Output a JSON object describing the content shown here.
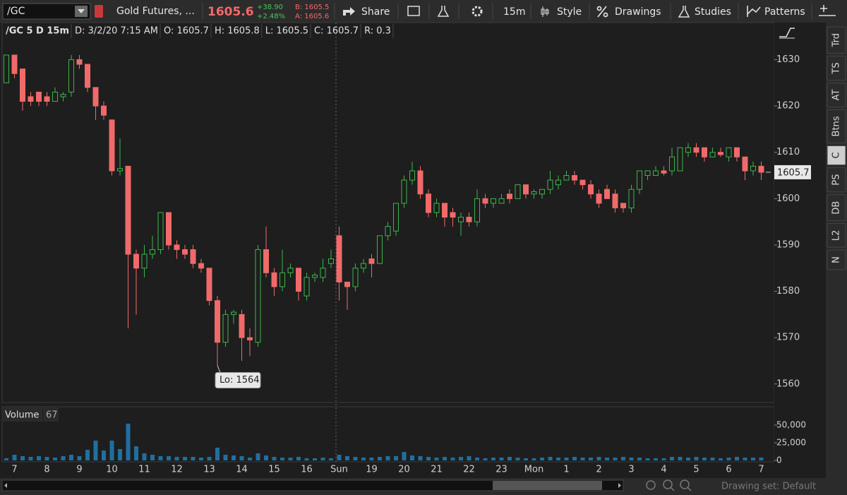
{
  "toolbar": {
    "symbol": "/GC",
    "description": "Gold Futures, ...",
    "last": "1605.6",
    "net_change": "+38.90",
    "percent_change": "+2.48%",
    "bid": "B: 1605.5",
    "ask": "A: 1605.6",
    "buttons": [
      "Share",
      "15m",
      "Style",
      "Drawings",
      "Studies",
      "Patterns"
    ]
  },
  "header": [
    "/GC 5 D 15m",
    "D: 3/2/20 7:15 AM",
    "O: 1605.7",
    "H: 1605.8",
    "L: 1605.5",
    "C: 1605.7",
    "R: 0.3"
  ],
  "chart_data": [
    {
      "type": "candlestick",
      "open": [
        1625,
        1631,
        1628,
        1622,
        1623,
        1622,
        1621,
        1622,
        1623,
        1630,
        1629,
        1624,
        1620,
        1617,
        1606,
        1607,
        1588,
        1585,
        1588,
        1589,
        1597,
        1590,
        1589,
        1589,
        1586,
        1585,
        1578,
        1569,
        1575,
        1575,
        1570,
        1569,
        1589,
        1584,
        1581,
        1584,
        1585,
        1579,
        1583,
        1583,
        1586,
        1592,
        1582,
        1581,
        1585,
        1587,
        1586,
        1592,
        1593,
        1599,
        1604,
        1606,
        1601,
        1597,
        1599,
        1597,
        1595,
        1596,
        1595,
        1600,
        1599,
        1599,
        1601,
        1600,
        1603,
        1601,
        1601,
        1602,
        1603,
        1604,
        1605,
        1604,
        1603,
        1601,
        1602,
        1601,
        1599,
        1598,
        1602,
        1605,
        1605,
        1606,
        1606,
        1606,
        1610,
        1611,
        1611,
        1609,
        1610,
        1609,
        1611,
        1609,
        1606,
        1607
      ],
      "high": [
        1631,
        1631,
        1628,
        1623,
        1623,
        1623,
        1624,
        1623,
        1631,
        1631,
        1629,
        1624,
        1621,
        1617,
        1613,
        1607,
        1589,
        1590,
        1592,
        1597,
        1597,
        1591,
        1590,
        1590,
        1587,
        1585,
        1579,
        1576,
        1576,
        1576,
        1572,
        1590,
        1594,
        1585,
        1589,
        1586,
        1585,
        1584,
        1584,
        1587,
        1589,
        1594,
        1582,
        1586,
        1587,
        1588,
        1592,
        1595,
        1599,
        1605,
        1608,
        1607,
        1602,
        1600,
        1599,
        1598,
        1597,
        1597,
        1602,
        1601,
        1600,
        1601,
        1602,
        1603,
        1603,
        1602,
        1602,
        1606,
        1605,
        1606,
        1606,
        1604,
        1604,
        1602,
        1603,
        1602,
        1599,
        1603,
        1606,
        1606,
        1607,
        1607,
        1611,
        1611,
        1612,
        1612,
        1611,
        1611,
        1611,
        1611,
        1611,
        1609,
        1608,
        1608
      ],
      "low": [
        1625,
        1626,
        1619,
        1620,
        1620,
        1620,
        1621,
        1621,
        1622,
        1628,
        1623,
        1617,
        1617,
        1605,
        1605,
        1572,
        1575,
        1583,
        1587,
        1588,
        1589,
        1587,
        1587,
        1585,
        1584,
        1577,
        1564,
        1568,
        1573,
        1565,
        1566,
        1568,
        1583,
        1579,
        1580,
        1583,
        1578,
        1578,
        1582,
        1582,
        1585,
        1578,
        1576,
        1580,
        1584,
        1583,
        1586,
        1591,
        1592,
        1598,
        1603,
        1600,
        1596,
        1596,
        1594,
        1594,
        1592,
        1594,
        1594,
        1598,
        1598,
        1599,
        1599,
        1600,
        1600,
        1600,
        1600,
        1601,
        1602,
        1604,
        1603,
        1602,
        1600,
        1598,
        1600,
        1597,
        1597,
        1597,
        1601,
        1604,
        1605,
        1605,
        1605,
        1606,
        1609,
        1609,
        1608,
        1609,
        1609,
        1608,
        1608,
        1604,
        1605,
        1604
      ],
      "close": [
        1631,
        1627,
        1621,
        1621,
        1621,
        1621,
        1623,
        1622.5,
        1630,
        1629,
        1624,
        1620,
        1618,
        1606,
        1606.5,
        1588,
        1585,
        1588,
        1589,
        1597,
        1590,
        1589,
        1588,
        1586,
        1585,
        1578,
        1569,
        1575,
        1575.5,
        1570,
        1569.5,
        1589,
        1584,
        1581,
        1584,
        1585,
        1580,
        1583,
        1583.5,
        1585,
        1587,
        1582,
        1581,
        1585,
        1586,
        1586,
        1592,
        1594,
        1599,
        1604,
        1606,
        1601,
        1597,
        1599,
        1596,
        1596,
        1596,
        1595,
        1600,
        1599,
        1600,
        1600,
        1600,
        1603,
        1601,
        1601.5,
        1602,
        1604,
        1604,
        1605,
        1604,
        1603,
        1601,
        1599,
        1600,
        1598,
        1598,
        1602,
        1606,
        1606,
        1606,
        1605.5,
        1609,
        1611,
        1611,
        1610,
        1609,
        1610,
        1609.5,
        1611,
        1609,
        1606,
        1607,
        1605.7
      ],
      "x_labels": [
        "7",
        "8",
        "9",
        "10",
        "11",
        "12",
        "13",
        "14",
        "15",
        "16",
        "Sun",
        "19",
        "20",
        "21",
        "22",
        "23",
        "Mon",
        "1",
        "2",
        "3",
        "4",
        "5",
        "6",
        "7"
      ],
      "ylim": [
        1556,
        1638
      ],
      "yticks": [
        1560,
        1570,
        1580,
        1590,
        1600,
        1610,
        1620,
        1630
      ],
      "up_color": "#3cb54a",
      "down_color": "#f06a6a",
      "last_price": 1605.7,
      "annotations": [
        {
          "label": "Lo: 1564",
          "value": 1564
        }
      ]
    },
    {
      "type": "bar",
      "title": "Volume",
      "current": 67,
      "values": [
        3000,
        8000,
        6000,
        5000,
        6000,
        5000,
        4000,
        6000,
        8000,
        6000,
        15000,
        28000,
        14000,
        28000,
        16000,
        52000,
        20000,
        10000,
        8000,
        6000,
        6000,
        5000,
        5000,
        5000,
        4000,
        5000,
        18000,
        8000,
        7000,
        6000,
        4000,
        10000,
        7000,
        5000,
        4000,
        4000,
        5000,
        3000,
        3000,
        4000,
        3000,
        8000,
        6000,
        5000,
        4000,
        4000,
        5000,
        6000,
        6000,
        12000,
        7000,
        6000,
        5000,
        4000,
        5000,
        4000,
        5000,
        6000,
        4000,
        3000,
        4000,
        4000,
        5000,
        4000,
        3000,
        3000,
        4000,
        5000,
        4000,
        4000,
        5000,
        4000,
        4000,
        5000,
        4000,
        4000,
        5000,
        4000,
        4000,
        3000,
        3000,
        3000,
        5000,
        5000,
        4000,
        5000,
        4000,
        4000,
        3000,
        4000,
        5000,
        4000,
        4000,
        4000
      ],
      "color": "#1f6f9f",
      "ylim": [
        0,
        70000
      ],
      "yticks": [
        0,
        {
          "value": 25000,
          "label": "25,000"
        },
        {
          "value": 50000,
          "label": "50,000"
        }
      ]
    }
  ],
  "sidebar_tabs": [
    "Trd",
    "TS",
    "AT",
    "Btns",
    "C",
    "PS",
    "DB",
    "L2",
    "N"
  ],
  "footer": {
    "drawing_set": "Drawing set: Default"
  }
}
